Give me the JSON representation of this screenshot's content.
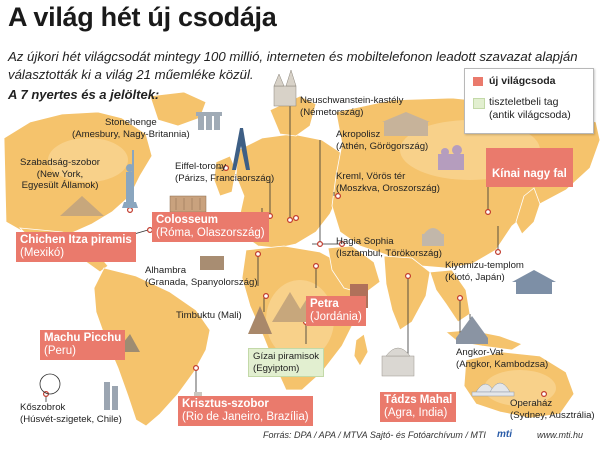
{
  "header": {
    "title": "A világ hét új csodája",
    "subtitle": "Az újkori hét világcsodát mintegy 100 millió, interneten és mobiltelefonon leadott szavazat alapján választották ki a világ 21 műemléke közül.",
    "nominees_heading": "A 7 nyertes és a jelöltek:"
  },
  "legend": {
    "winner": "új világcsoda",
    "honorary_line1": "tiszteletbeli tag",
    "honorary_line2": "(antik világcsoda)"
  },
  "winners": [
    {
      "line1": "Colosseum",
      "line2": "(Róma, Olaszország)"
    },
    {
      "line1": "Chichen Itza piramis",
      "line2": "(Mexikó)"
    },
    {
      "line1": "Kínai nagy fal",
      "line2": ""
    },
    {
      "line1": "Petra",
      "line2": "(Jordánia)"
    },
    {
      "line1": "Machu Picchu",
      "line2": "(Peru)"
    },
    {
      "line1": "Krisztus-szobor",
      "line2": "(Rio de Janeiro, Brazília)"
    },
    {
      "line1": "Tádzs Mahal",
      "line2": "(Agra, India)"
    }
  ],
  "honorary": {
    "line1": "Gízai piramisok",
    "line2": "(Egyiptom)"
  },
  "nominees": [
    {
      "line1": "Stonehenge",
      "line2": "(Amesbury, Nagy-Britannia)"
    },
    {
      "line1": "Neuschwanstein-kastély",
      "line2": "(Németország)"
    },
    {
      "line1": "Szabadság-szobor",
      "line2": "(New York,",
      "line3": "Egyesült Államok)"
    },
    {
      "line1": "Eiffel-torony",
      "line2": "(Párizs, Franciaország)"
    },
    {
      "line1": "Akropolisz",
      "line2": "(Athén, Görögország)"
    },
    {
      "line1": "Kreml, Vörös tér",
      "line2": "(Moszkva, Oroszország)"
    },
    {
      "line1": "Hagia Sophia",
      "line2": "(Isztambul, Törökország)"
    },
    {
      "line1": "Alhambra",
      "line2": "(Granada, Spanyolország)"
    },
    {
      "line1": "Kiyomizu-templom",
      "line2": "(Kiotó, Japán)"
    },
    {
      "line1": "Timbuktu (Mali)"
    },
    {
      "line1": "Angkor-Vat",
      "line2": "(Angkor, Kambodzsa)"
    },
    {
      "line1": "Kőszobrok",
      "line2": "(Húsvét-szigetek, Chile)"
    },
    {
      "line1": "Operaház",
      "line2": "(Sydney, Ausztrália)"
    }
  ],
  "footer": {
    "source": "Forrás: DPA / APA / MTVA Sajtó- és Fotóarchívum / MTI",
    "logo": "mti",
    "url": "www.mti.hu"
  },
  "colors": {
    "land": "#f5c36c",
    "land_alt": "#f8d38e",
    "sea": "#ffffff",
    "winner_box": "#ea7a6c",
    "honorary_box": "#e2efd0"
  }
}
